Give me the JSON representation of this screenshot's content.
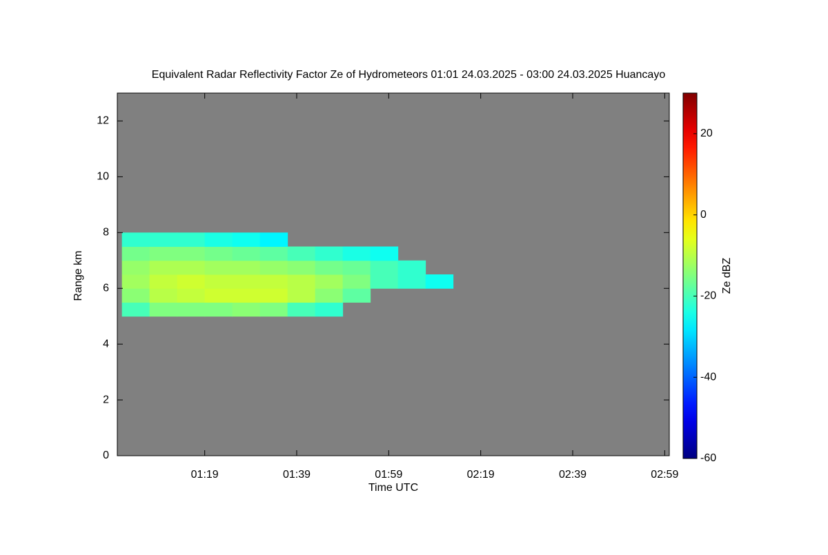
{
  "chart_data": {
    "type": "heatmap",
    "title": "Equivalent Radar Reflectivity Factor Ze of Hydrometeors   01:01 24.03.2025 - 03:00 24.03.2025 Huancayo",
    "x_label": "Time UTC",
    "y_label": "Range km",
    "colorbar_label": "Ze dBZ",
    "x_edges": [
      "01:01",
      "01:07",
      "01:13",
      "01:19",
      "01:25",
      "01:31",
      "01:37",
      "01:43",
      "01:49",
      "01:55",
      "02:01",
      "02:07",
      "02:13"
    ],
    "y_edges": [
      5,
      5.5,
      6,
      6.5,
      7,
      7.5,
      8
    ],
    "z": [
      [
        -20,
        -15,
        -15,
        -15,
        -14,
        -15,
        -20,
        -22,
        null,
        null,
        null,
        null
      ],
      [
        -14,
        -10,
        -9,
        -8,
        -8,
        -8,
        -10,
        -14,
        -18,
        null,
        null,
        null
      ],
      [
        -12,
        -9,
        -8,
        -9,
        -9,
        -9,
        -10,
        -12,
        -15,
        -20,
        -22,
        -25
      ],
      [
        -13,
        -11,
        -11,
        -12,
        -12,
        -13,
        -14,
        -16,
        -17,
        -20,
        -22,
        null
      ],
      [
        -16,
        -15,
        -15,
        -16,
        -17,
        -18,
        -20,
        -22,
        -24,
        -25,
        null,
        null
      ],
      [
        -22,
        -22,
        -22,
        -24,
        -25,
        -27,
        null,
        null,
        null,
        null,
        null,
        null
      ]
    ],
    "xlim": [
      "01:00",
      "03:00"
    ],
    "xticks": [
      "01:19",
      "01:39",
      "01:59",
      "02:19",
      "02:39",
      "02:59"
    ],
    "ylim": [
      0,
      13
    ],
    "yticks": [
      0,
      2,
      4,
      6,
      8,
      10,
      12
    ],
    "clim": [
      -60,
      30
    ],
    "cticks": [
      -60,
      -40,
      -20,
      0,
      20
    ],
    "colormap": "jet",
    "background": "#808080"
  }
}
